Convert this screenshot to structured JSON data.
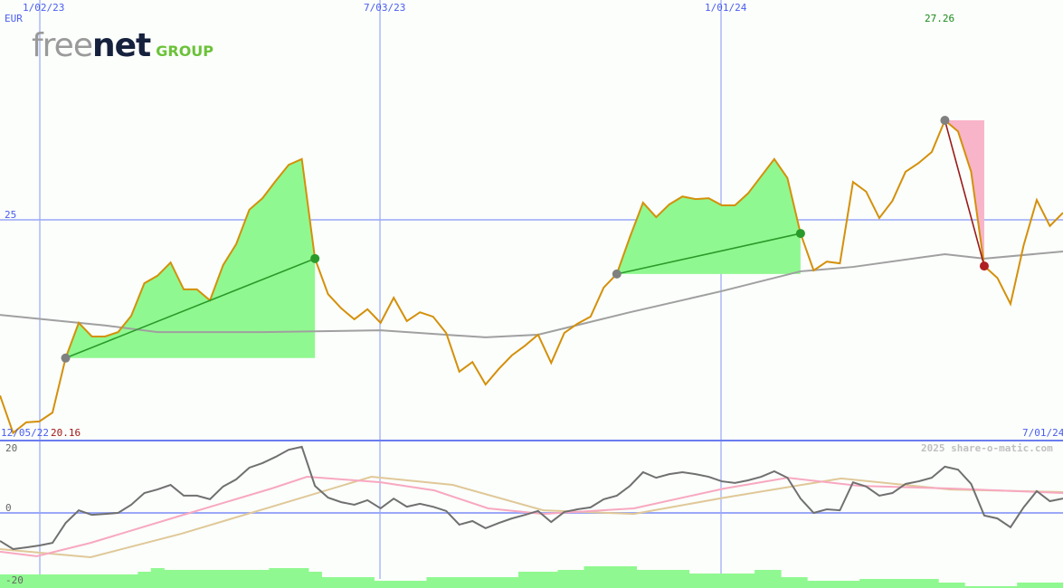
{
  "header": {
    "currency": "EUR",
    "logo_text_a": "free",
    "logo_text_b": "net",
    "logo_text_c": "GROUP"
  },
  "chart_data": [
    {
      "type": "line",
      "panel": "price",
      "x_tick_labels": [
        "1/02/23",
        "7/03/23",
        "1/01/24"
      ],
      "y_tick_labels": [
        "25"
      ],
      "start_date": "12/05/22",
      "end_date": "7/01/24",
      "min_label": "20.16",
      "max_label": "27.26",
      "ylim": [
        20.16,
        27.26
      ],
      "series": [
        {
          "key": "price",
          "color": "#d4900a",
          "values": [
            21.01,
            20.16,
            20.4,
            20.42,
            20.62,
            21.86,
            22.66,
            22.35,
            22.35,
            22.45,
            22.82,
            23.56,
            23.73,
            24.03,
            23.42,
            23.42,
            23.17,
            23.97,
            24.45,
            25.23,
            25.49,
            25.88,
            26.25,
            26.38,
            24.12,
            23.31,
            22.99,
            22.74,
            22.97,
            22.66,
            23.23,
            22.7,
            22.9,
            22.8,
            22.43,
            21.55,
            21.77,
            21.26,
            21.61,
            21.92,
            22.14,
            22.39,
            21.75,
            22.43,
            22.64,
            22.8,
            23.46,
            23.77,
            24.61,
            25.39,
            25.06,
            25.35,
            25.53,
            25.47,
            25.49,
            25.33,
            25.33,
            25.6,
            25.99,
            26.38,
            25.95,
            24.69,
            23.85,
            24.05,
            24.01,
            25.86,
            25.64,
            25.04,
            25.43,
            26.09,
            26.29,
            26.54,
            27.26,
            27.01,
            26.09,
            23.95,
            23.68,
            23.09,
            24.42,
            25.45,
            24.86,
            25.16
          ]
        },
        {
          "key": "moving-average",
          "color": "#a0a0a0",
          "points": [
            [
              0,
              22.84
            ],
            [
              8,
              22.6
            ],
            [
              12,
              22.45
            ],
            [
              20,
              22.45
            ],
            [
              29,
              22.49
            ],
            [
              37,
              22.33
            ],
            [
              41,
              22.39
            ],
            [
              48,
              22.9
            ],
            [
              55,
              23.38
            ],
            [
              61,
              23.83
            ],
            [
              65,
              23.93
            ],
            [
              72,
              24.22
            ],
            [
              75,
              24.12
            ],
            [
              81,
              24.28
            ]
          ]
        }
      ],
      "signals": [
        {
          "type": "gain",
          "from": 5,
          "to": 24,
          "color": "#2a9a2a",
          "fill": "#90f890"
        },
        {
          "type": "gain",
          "from": 47,
          "to": 61,
          "color": "#2a9a2a",
          "fill": "#90f890"
        },
        {
          "type": "loss",
          "from": 72,
          "to": 75,
          "color": "#9a1a1a",
          "fill": "#f8b4c8"
        }
      ]
    },
    {
      "type": "line",
      "panel": "indicator",
      "y_tick_labels": [
        "20",
        "0",
        "-20"
      ],
      "ylim": [
        -20,
        20
      ],
      "watermark": "2025 share-o-matic.com",
      "series": [
        {
          "key": "momentum",
          "color": "#707070",
          "values": [
            -8.6,
            -11.1,
            -10.6,
            -10.0,
            -9.2,
            -3.1,
            0.8,
            -0.6,
            -0.3,
            0,
            2.5,
            6.1,
            7.2,
            8.6,
            5.3,
            5.3,
            4.2,
            8.1,
            10.3,
            13.9,
            15.3,
            17.2,
            19.4,
            20.3,
            8.3,
            4.7,
            3.3,
            2.5,
            3.9,
            1.4,
            4.4,
            1.9,
            2.8,
            1.9,
            0.6,
            -3.6,
            -2.5,
            -4.7,
            -3.1,
            -1.7,
            -0.6,
            0.6,
            -2.8,
            0.3,
            1.1,
            1.7,
            4.2,
            5.3,
            8.3,
            12.5,
            10.8,
            11.9,
            12.5,
            11.9,
            11.1,
            9.7,
            9.2,
            10.0,
            11.1,
            12.8,
            10.8,
            4.4,
            0,
            1.1,
            0.8,
            9.4,
            8.1,
            5.3,
            6.1,
            8.9,
            9.7,
            10.8,
            14.2,
            13.3,
            8.9,
            -0.8,
            -1.7,
            -4.4,
            1.7,
            6.7,
            3.6,
            4.4
          ]
        },
        {
          "key": "fast-average",
          "color": "#f8a8c0",
          "points": [
            [
              0,
              -11.9
            ],
            [
              2.8,
              -13.3
            ],
            [
              6.9,
              -9.2
            ],
            [
              13.8,
              -0.8
            ],
            [
              20.7,
              7.5
            ],
            [
              23.4,
              11.1
            ],
            [
              29,
              9.4
            ],
            [
              33.1,
              6.9
            ],
            [
              37.2,
              1.4
            ],
            [
              41.4,
              -0.3
            ],
            [
              48.3,
              1.4
            ],
            [
              55.2,
              7.5
            ],
            [
              60,
              10.8
            ],
            [
              65.5,
              8.3
            ],
            [
              72.4,
              7.5
            ],
            [
              81,
              6.1
            ]
          ]
        },
        {
          "key": "slow-average",
          "color": "#e0c898",
          "points": [
            [
              0,
              -11.1
            ],
            [
              6.9,
              -13.6
            ],
            [
              13.8,
              -6.4
            ],
            [
              20.7,
              1.9
            ],
            [
              28.3,
              11.1
            ],
            [
              34.5,
              8.6
            ],
            [
              41.4,
              0.8
            ],
            [
              48.3,
              -0.3
            ],
            [
              55.2,
              4.7
            ],
            [
              64.1,
              10.6
            ],
            [
              72.4,
              7.2
            ],
            [
              81,
              6.4
            ]
          ]
        }
      ],
      "volume_relative": [
        15,
        15,
        15,
        15,
        15,
        15,
        15,
        15,
        15,
        15,
        15,
        18,
        22,
        20,
        20,
        20,
        20,
        20,
        20,
        20,
        20,
        22,
        22,
        22,
        18,
        12,
        12,
        12,
        12,
        8,
        8,
        8,
        8,
        12,
        12,
        12,
        12,
        12,
        12,
        12,
        18,
        18,
        18,
        20,
        20,
        24,
        24,
        24,
        24,
        20,
        20,
        20,
        20,
        16,
        16,
        16,
        16,
        16,
        20,
        20,
        12,
        12,
        8,
        8,
        8,
        8,
        10,
        10,
        10,
        10,
        10,
        10,
        6,
        6,
        2,
        2,
        2,
        2,
        6,
        6,
        6,
        6
      ]
    }
  ]
}
